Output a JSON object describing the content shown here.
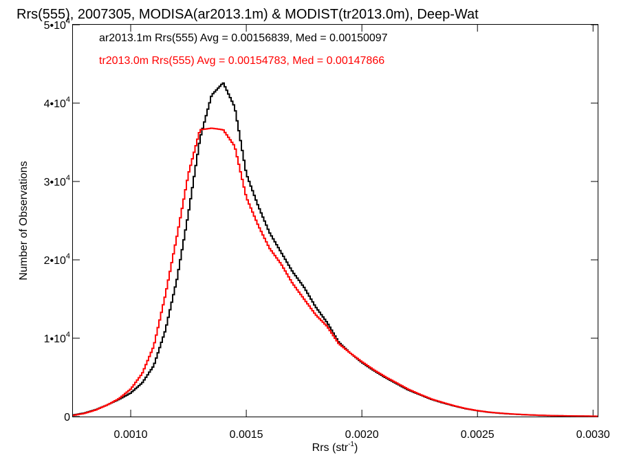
{
  "chart_data": {
    "type": "line",
    "title": "Rrs(555), 2007305, MODISA(ar2013.1m) & MODIST(tr2013.0m), Deep-Wat",
    "xlabel": "Rrs (str",
    "xlabel_sup": "-1",
    "xlabel_end": ")",
    "ylabel": "Number of Observations",
    "xlim": [
      0.00075,
      0.00302
    ],
    "ylim": [
      0,
      50000
    ],
    "xticks": [
      {
        "value": 0.001,
        "label": "0.0010"
      },
      {
        "value": 0.0015,
        "label": "0.0015"
      },
      {
        "value": 0.002,
        "label": "0.0020"
      },
      {
        "value": 0.0025,
        "label": "0.0025"
      },
      {
        "value": 0.003,
        "label": "0.0030"
      }
    ],
    "yticks": [
      {
        "value": 0,
        "base": "0",
        "exp": ""
      },
      {
        "value": 10000,
        "base": "1•10",
        "exp": "4"
      },
      {
        "value": 20000,
        "base": "2•10",
        "exp": "4"
      },
      {
        "value": 30000,
        "base": "3•10",
        "exp": "4"
      },
      {
        "value": 40000,
        "base": "4•10",
        "exp": "4"
      },
      {
        "value": 50000,
        "base": "5•10",
        "exp": "4"
      }
    ],
    "grid": false,
    "legend_position": "top-left",
    "series": [
      {
        "name": "ar2013.1m Rrs(555) Avg = 0.00156839, Med = 0.00150097",
        "color": "#000000",
        "step": true,
        "x": [
          0.00075,
          0.0008,
          0.00085,
          0.0009,
          0.00095,
          0.001,
          0.00105,
          0.0011,
          0.00115,
          0.0012,
          0.00125,
          0.0013,
          0.00135,
          0.0014,
          0.00145,
          0.0015,
          0.00155,
          0.0016,
          0.00165,
          0.0017,
          0.00175,
          0.0018,
          0.00185,
          0.0019,
          0.00195,
          0.002,
          0.00205,
          0.0021,
          0.00215,
          0.0022,
          0.00225,
          0.0023,
          0.00235,
          0.0024,
          0.00245,
          0.0025,
          0.00255,
          0.0026,
          0.00265,
          0.0027,
          0.00275,
          0.0028,
          0.00285,
          0.0029,
          0.00295,
          0.00302
        ],
        "y": [
          200,
          450,
          900,
          1500,
          2200,
          3000,
          4300,
          6500,
          11000,
          17500,
          26000,
          35500,
          41000,
          42600,
          39500,
          31000,
          27000,
          23500,
          21000,
          18500,
          16500,
          14000,
          12000,
          9500,
          8100,
          6900,
          5900,
          5000,
          4200,
          3400,
          2800,
          2200,
          1750,
          1350,
          1000,
          750,
          550,
          420,
          320,
          240,
          180,
          130,
          100,
          80,
          60,
          40
        ]
      },
      {
        "name": "tr2013.0m Rrs(555) Avg = 0.00154783, Med = 0.00147866",
        "color": "#ff0000",
        "step": true,
        "x": [
          0.00075,
          0.0008,
          0.00085,
          0.0009,
          0.00095,
          0.001,
          0.00105,
          0.0011,
          0.00115,
          0.0012,
          0.00125,
          0.0013,
          0.00135,
          0.0014,
          0.00145,
          0.0015,
          0.00155,
          0.0016,
          0.00165,
          0.0017,
          0.00175,
          0.0018,
          0.00185,
          0.0019,
          0.00195,
          0.002,
          0.00205,
          0.0021,
          0.00215,
          0.0022,
          0.00225,
          0.0023,
          0.00235,
          0.0024,
          0.00245,
          0.0025,
          0.00255,
          0.0026,
          0.00265,
          0.0027,
          0.00275,
          0.0028,
          0.00285,
          0.0029,
          0.00295,
          0.00302
        ],
        "y": [
          150,
          400,
          850,
          1500,
          2300,
          3500,
          5500,
          9000,
          15500,
          23000,
          31000,
          36600,
          36800,
          36600,
          34500,
          28000,
          24500,
          21500,
          19500,
          17000,
          15000,
          13000,
          11500,
          9300,
          8100,
          7000,
          6000,
          5100,
          4300,
          3500,
          2850,
          2250,
          1800,
          1380,
          1020,
          760,
          560,
          430,
          330,
          250,
          190,
          140,
          110,
          85,
          65,
          45
        ]
      }
    ]
  }
}
